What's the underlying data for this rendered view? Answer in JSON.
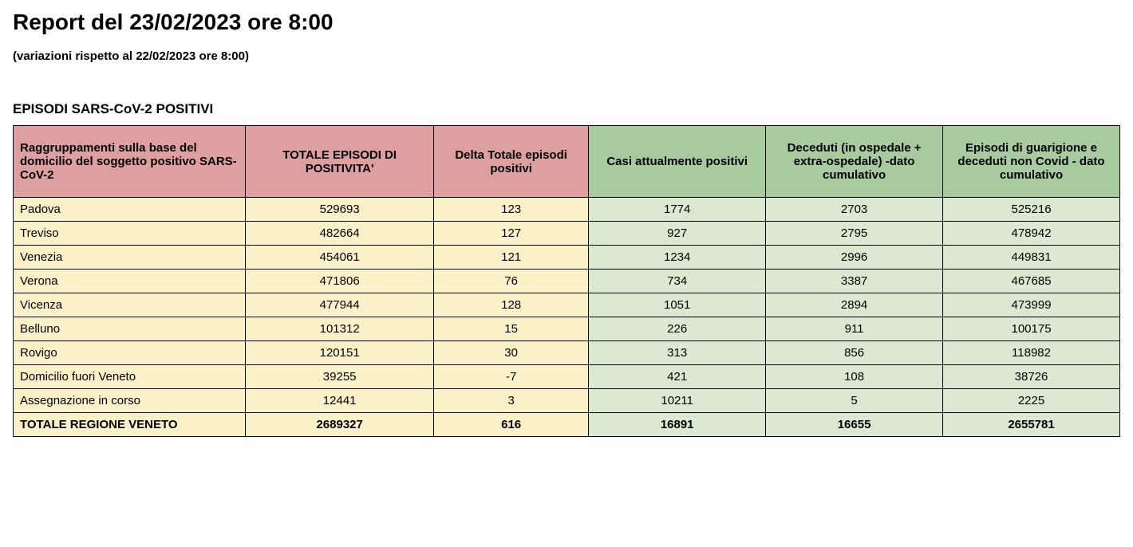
{
  "title": "Report del 23/02/2023 ore 8:00",
  "subtitle": "(variazioni rispetto al 22/02/2023 ore 8:00)",
  "section_title": "EPISODI SARS-CoV-2 POSITIVI",
  "colors": {
    "header_pink": "#dd9f9f",
    "header_green": "#a7cb9f",
    "body_cream": "#faf1c9",
    "body_green": "#dbe9d3",
    "border": "#000000"
  },
  "table": {
    "columns": [
      {
        "label": "Raggruppamenti sulla base del domicilio del soggetto positivo SARS-CoV-2",
        "header_color": "header_pink",
        "body_color": "body_cream",
        "align": "left"
      },
      {
        "label": "TOTALE EPISODI DI POSITIVITA'",
        "header_color": "header_pink",
        "body_color": "body_cream",
        "align": "center"
      },
      {
        "label": "Delta Totale episodi positivi",
        "header_color": "header_pink",
        "body_color": "body_cream",
        "align": "center"
      },
      {
        "label": "Casi attualmente positivi",
        "header_color": "header_green",
        "body_color": "body_green",
        "align": "center"
      },
      {
        "label": "Deceduti (in ospedale + extra-ospedale) -dato cumulativo",
        "header_color": "header_green",
        "body_color": "body_green",
        "align": "center"
      },
      {
        "label": "Episodi di guarigione e deceduti non Covid - dato cumulativo",
        "header_color": "header_green",
        "body_color": "body_green",
        "align": "center"
      }
    ],
    "rows": [
      [
        "Padova",
        "529693",
        "123",
        "1774",
        "2703",
        "525216"
      ],
      [
        "Treviso",
        "482664",
        "127",
        "927",
        "2795",
        "478942"
      ],
      [
        "Venezia",
        "454061",
        "121",
        "1234",
        "2996",
        "449831"
      ],
      [
        "Verona",
        "471806",
        "76",
        "734",
        "3387",
        "467685"
      ],
      [
        "Vicenza",
        "477944",
        "128",
        "1051",
        "2894",
        "473999"
      ],
      [
        "Belluno",
        "101312",
        "15",
        "226",
        "911",
        "100175"
      ],
      [
        "Rovigo",
        "120151",
        "30",
        "313",
        "856",
        "118982"
      ],
      [
        "Domicilio fuori Veneto",
        "39255",
        "-7",
        "421",
        "108",
        "38726"
      ],
      [
        "Assegnazione in corso",
        "12441",
        "3",
        "10211",
        "5",
        "2225"
      ]
    ],
    "total_row": [
      "TOTALE REGIONE VENETO",
      "2689327",
      "616",
      "16891",
      "16655",
      "2655781"
    ]
  }
}
